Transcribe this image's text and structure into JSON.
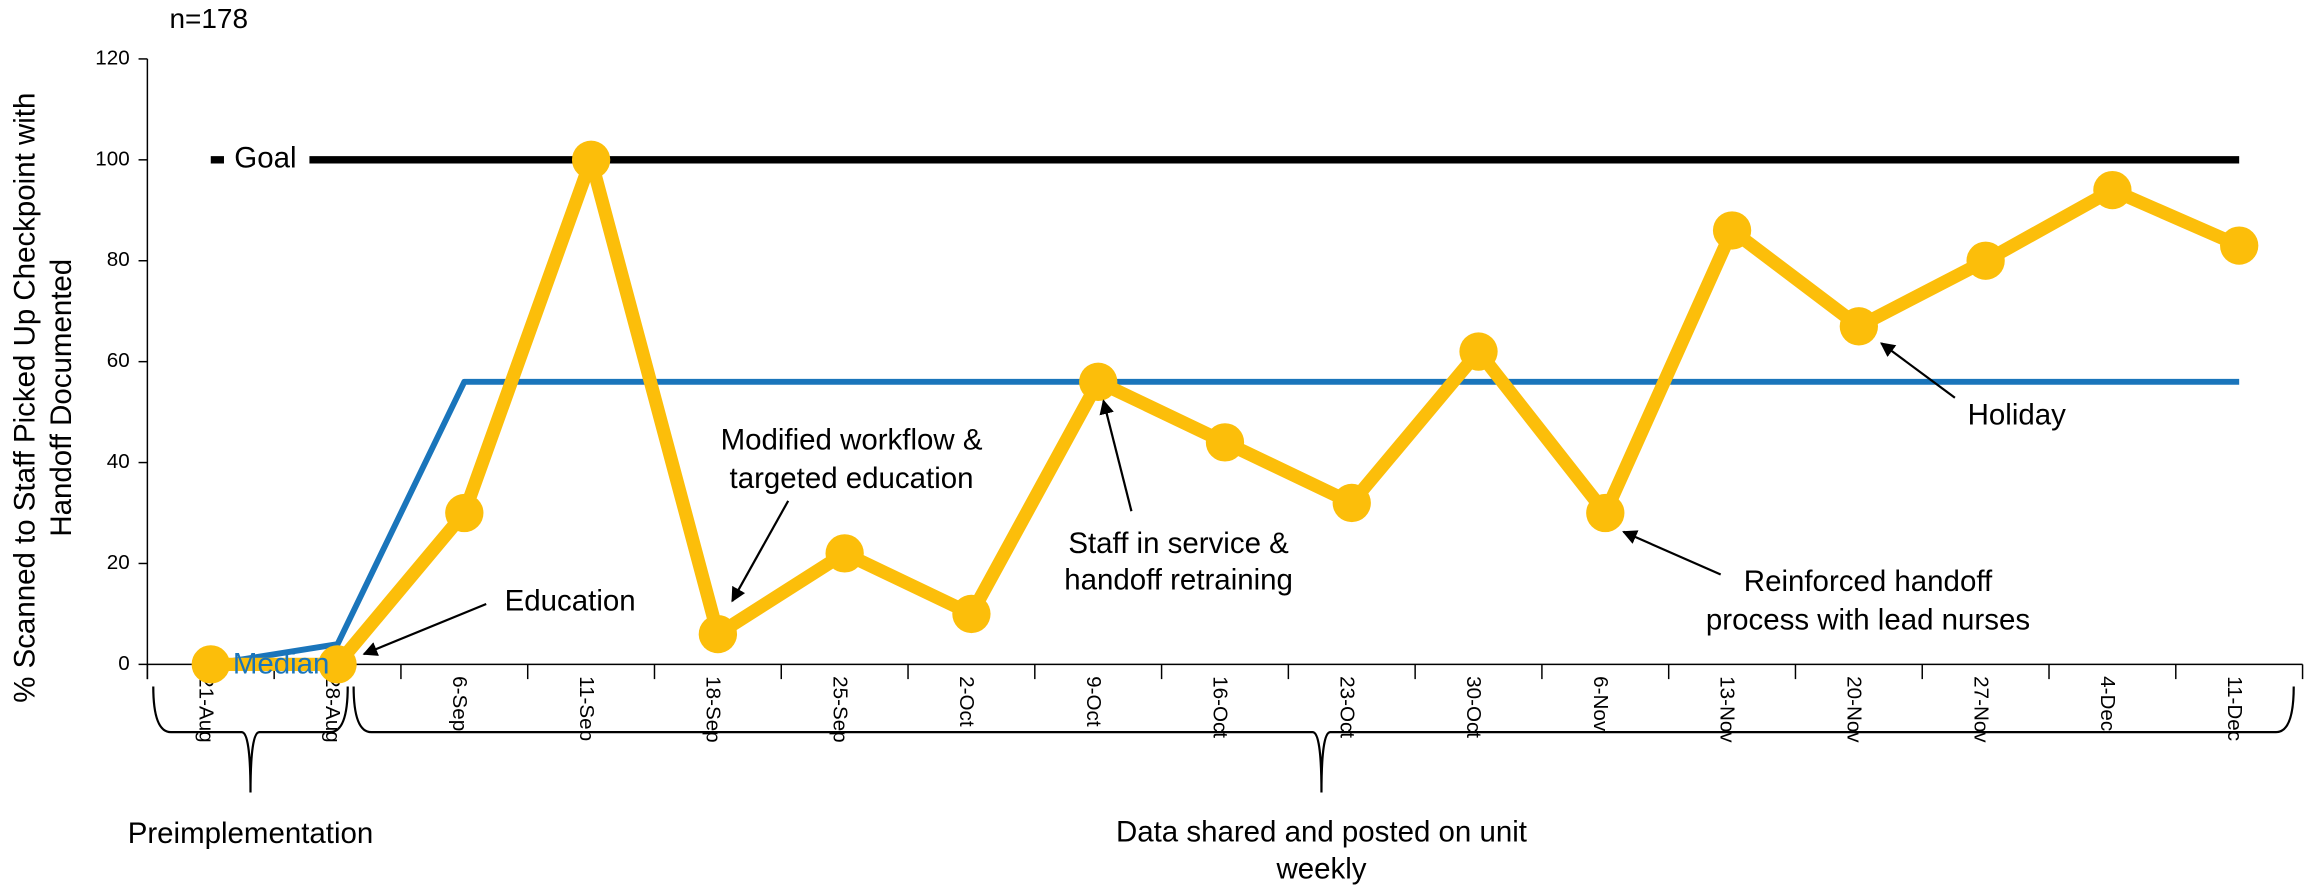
{
  "chart_data": {
    "type": "line",
    "subtitle": "n=178",
    "y_axis_label": [
      "% Scanned to Staff Picked Up Checkpoint with",
      "Handoff Documented"
    ],
    "categories": [
      "21-Aug",
      "28-Aug",
      "6-Sep",
      "11-Sep",
      "18-Sep",
      "25-Sep",
      "2-Oct",
      "9-Oct",
      "16-Oct",
      "23-Oct",
      "30-Oct",
      "6-Nov",
      "13-Nov",
      "20-Nov",
      "27-Nov",
      "4-Dec",
      "11-Dec"
    ],
    "ylim": [
      0,
      120
    ],
    "yticks": [
      0,
      20,
      40,
      60,
      80,
      100,
      120
    ],
    "series": [
      {
        "name": "Goal",
        "color": "#000000",
        "values": [
          100,
          100,
          100,
          100,
          100,
          100,
          100,
          100,
          100,
          100,
          100,
          100,
          100,
          100,
          100,
          100,
          100
        ]
      },
      {
        "name": "Median",
        "color": "#1a75bb",
        "values": [
          0,
          4,
          56,
          56,
          56,
          56,
          56,
          56,
          56,
          56,
          56,
          56,
          56,
          56,
          56,
          56,
          56
        ]
      },
      {
        "color": "#fcbe0a",
        "values": [
          0,
          0,
          30,
          100,
          6,
          22,
          10,
          56,
          44,
          32,
          62,
          30,
          86,
          67,
          80,
          94,
          83
        ]
      }
    ],
    "annotations": [
      {
        "text": [
          "Education"
        ]
      },
      {
        "text": [
          "Modified workflow &",
          "targeted education"
        ]
      },
      {
        "text": [
          "Staff in service &",
          "handoff retraining"
        ]
      },
      {
        "text": [
          "Holiday"
        ]
      },
      {
        "text": [
          "Reinforced handoff",
          "process with lead nurses"
        ]
      }
    ],
    "phases": [
      {
        "label": [
          "Preimplementation"
        ]
      },
      {
        "label": [
          "Data shared and posted on unit",
          "weekly"
        ]
      }
    ]
  }
}
